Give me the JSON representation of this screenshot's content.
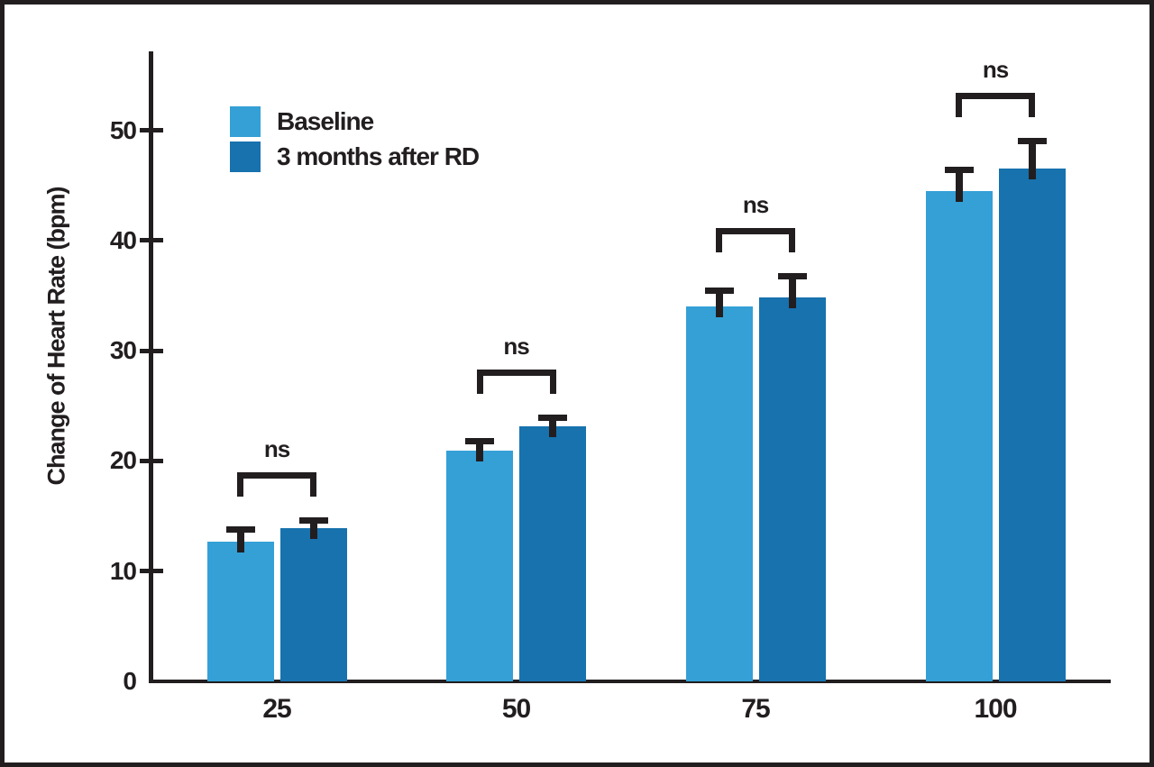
{
  "figure": {
    "colors": {
      "baseline": "#34A0D6",
      "after": "#1772AE",
      "ink": "#221E1F",
      "background": "#FFFFFF"
    }
  },
  "chart_data": {
    "type": "bar",
    "categories": [
      "25",
      "50",
      "75",
      "100"
    ],
    "series": [
      {
        "name": "Baseline",
        "values": [
          12.7,
          20.9,
          34.0,
          44.5
        ],
        "errors": [
          1.4,
          1.2,
          1.7,
          2.2
        ],
        "color_key": "baseline"
      },
      {
        "name": "3 months after RD",
        "values": [
          13.9,
          23.1,
          34.8,
          46.5
        ],
        "errors": [
          1.0,
          1.1,
          2.2,
          2.8
        ],
        "color_key": "after"
      }
    ],
    "significance_labels": [
      "ns",
      "ns",
      "ns",
      "ns"
    ],
    "title": "",
    "xlabel": "",
    "ylabel": "Change of Heart Rate (bpm)",
    "ylim": [
      0,
      57
    ],
    "yticks": [
      0,
      10,
      20,
      30,
      40,
      50
    ],
    "grid": false,
    "legend_position": "upper-left",
    "error_bar_style": "upper-only"
  }
}
